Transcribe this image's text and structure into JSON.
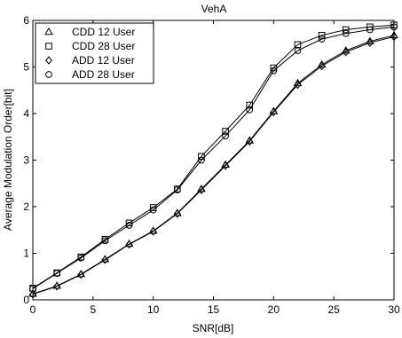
{
  "chart_data": {
    "type": "line",
    "title": "VehA",
    "xlabel": "SNR[dB]",
    "ylabel": "Average Modulation Order[bit]",
    "xlim": [
      0,
      30
    ],
    "ylim": [
      0,
      6
    ],
    "xticks": [
      0,
      5,
      10,
      15,
      20,
      25,
      30
    ],
    "yticks": [
      0,
      1,
      2,
      3,
      4,
      5,
      6
    ],
    "grid": false,
    "legend_position": "top-left",
    "x": [
      0,
      2,
      4,
      6,
      8,
      10,
      12,
      14,
      16,
      18,
      20,
      22,
      24,
      26,
      28,
      30
    ],
    "series": [
      {
        "name": "CDD 12 User",
        "marker": "triangle",
        "values": [
          0.13,
          0.3,
          0.55,
          0.87,
          1.2,
          1.48,
          1.86,
          2.38,
          2.9,
          3.42,
          4.05,
          4.65,
          5.05,
          5.35,
          5.55,
          5.68
        ]
      },
      {
        "name": "CDD 28 User",
        "marker": "square",
        "values": [
          0.25,
          0.58,
          0.92,
          1.3,
          1.65,
          1.98,
          2.38,
          3.08,
          3.62,
          4.18,
          4.98,
          5.48,
          5.68,
          5.8,
          5.86,
          5.9
        ]
      },
      {
        "name": "ADD 12 User",
        "marker": "diamond",
        "values": [
          0.12,
          0.29,
          0.54,
          0.86,
          1.19,
          1.47,
          1.85,
          2.36,
          2.88,
          3.4,
          4.03,
          4.62,
          5.02,
          5.32,
          5.52,
          5.65
        ]
      },
      {
        "name": "ADD 28 User",
        "marker": "circle",
        "values": [
          0.24,
          0.57,
          0.9,
          1.27,
          1.6,
          1.93,
          2.36,
          3.0,
          3.52,
          4.08,
          4.92,
          5.35,
          5.6,
          5.72,
          5.8,
          5.86
        ]
      }
    ]
  }
}
